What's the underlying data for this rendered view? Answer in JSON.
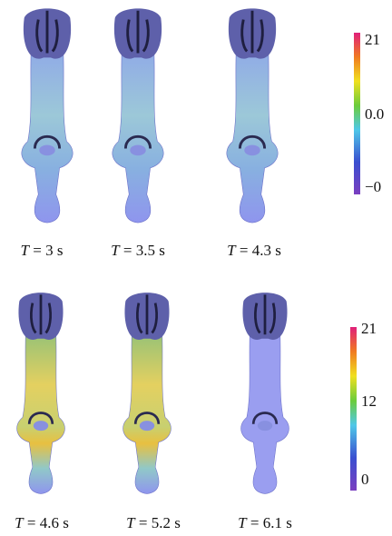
{
  "panels": [
    {
      "label": "T = 3 s"
    },
    {
      "label": "T = 3.5 s"
    },
    {
      "label": "T = 4.3 s"
    },
    {
      "label": "T = 4.6 s"
    },
    {
      "label": "T = 5.2 s"
    },
    {
      "label": "T = 6.1 s"
    }
  ],
  "colorbars": [
    {
      "ticks": [
        "21",
        "0.0",
        "−0"
      ]
    },
    {
      "ticks": [
        "21",
        "12",
        "0"
      ]
    }
  ]
}
